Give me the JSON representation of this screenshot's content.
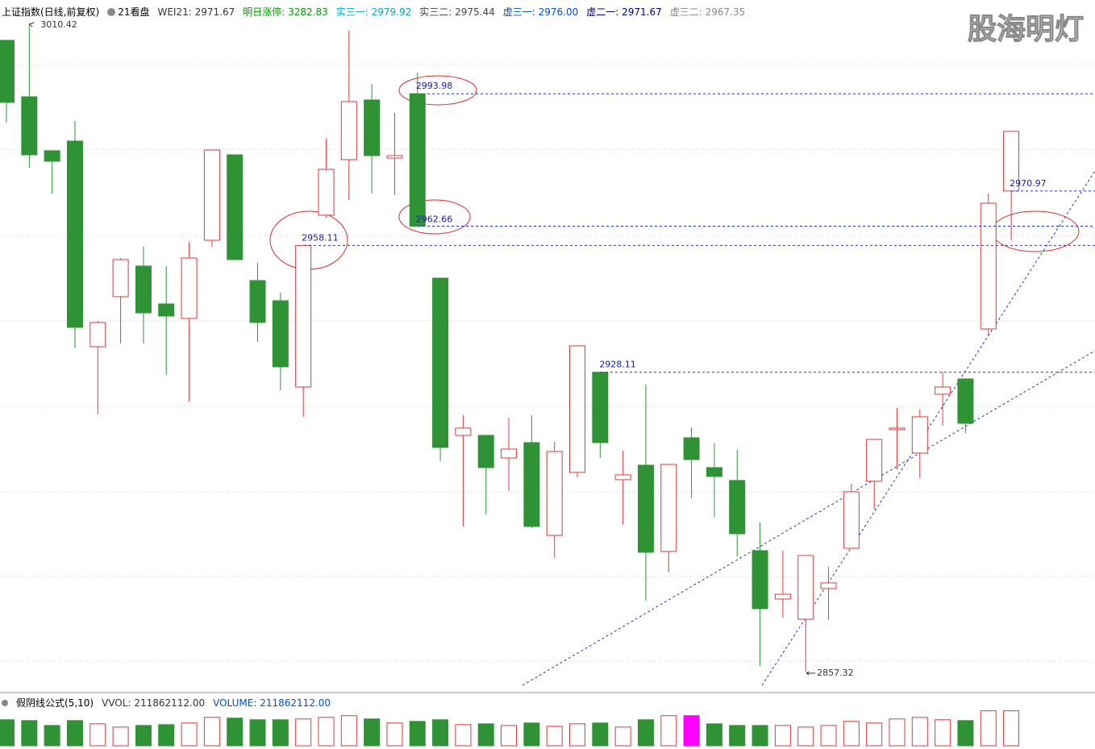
{
  "chart_data": {
    "type": "candlestick",
    "title": "上证指数(日线,前复权)",
    "subtitle": "21看盘",
    "indicators": [
      {
        "name": "WEI21:",
        "value": 2971.67,
        "color": "#333333"
      },
      {
        "name": "明日涨停:",
        "value": 3282.83,
        "color": "#009900"
      },
      {
        "name": "实三一:",
        "value": 2979.92,
        "color": "#00a8c8"
      },
      {
        "name": "实三二:",
        "value": 2975.44,
        "color": "#444444"
      },
      {
        "name": "虚三一:",
        "value": 2976,
        "value_label": "2976.00",
        "color": "#0050c8"
      },
      {
        "name": "虚二一:",
        "value": 2971.67,
        "color": "#000080"
      },
      {
        "name": "虚三二:",
        "value": 2967.35,
        "color": "#888888"
      }
    ],
    "watermark": "股海明灯",
    "ylim": [
      2853.12,
      3016.14
    ],
    "up_color": "#e0383d",
    "down_color": "#2f9335",
    "open": [
      3006.61,
      2993.26,
      2980.49,
      2982.77,
      2934.16,
      2945.98,
      2953.22,
      2944.26,
      2940.83,
      2959.32,
      2979.53,
      2949.79,
      2945.02,
      2924.62,
      2965.24,
      2978.39,
      2992.5,
      2978.77,
      2993.98,
      2950.36,
      2913.18,
      2913.18,
      2907.85,
      2911.47,
      2889.54,
      2904.42,
      2928.11,
      2902.7,
      2906.13,
      2885.73,
      2912.61,
      2905.56,
      2902.51,
      2885.92,
      2874.48,
      2869.71,
      2876.96,
      2886.49,
      2902.32,
      2914.52,
      2908.99,
      2922.91,
      2926.53,
      2938.35,
      2970.97
    ],
    "high": [
      3006.61,
      3010.42,
      2980.49,
      2987.54,
      2940.26,
      2955.13,
      2957.8,
      2953.22,
      2958.94,
      2980.68,
      2979.53,
      2953.98,
      2946.93,
      2958.11,
      2983.35,
      3008.89,
      2996.31,
      2989.45,
      2998.98,
      2950.36,
      2917.95,
      2913.18,
      2917.38,
      2917.95,
      2911.66,
      2934.35,
      2928.11,
      2909.56,
      2925.2,
      2906.32,
      2915.09,
      2911.28,
      2909.75,
      2892.59,
      2885.92,
      2884.77,
      2882.11,
      2901.74,
      2912.23,
      2919.67,
      2919.29,
      2928.25,
      2926.53,
      2970.38,
      2985.06
    ],
    "low": [
      2987.16,
      2976.48,
      2970.38,
      2933.78,
      2918.14,
      2934.92,
      2934.92,
      2927.48,
      2921.2,
      2957.8,
      2954.75,
      2935.3,
      2923.86,
      2917.57,
      2964.66,
      2968.86,
      2970.38,
      2970,
      2962.66,
      2907.08,
      2891.64,
      2894.5,
      2900.03,
      2891.26,
      2884.2,
      2903.27,
      2907.85,
      2892.02,
      2874.1,
      2880.77,
      2898.31,
      2893.74,
      2884.58,
      2858.65,
      2870.09,
      2857.32,
      2869.52,
      2886.49,
      2895.64,
      2905.18,
      2903.08,
      2915.47,
      2913.76,
      2936.83,
      2959.32
    ],
    "close": [
      2991.93,
      2979.53,
      2978.01,
      2938.73,
      2939.88,
      2954.75,
      2942.16,
      2941.4,
      2955.13,
      2980.68,
      2954.75,
      2939.88,
      2929.39,
      2958.11,
      2976.1,
      2992.12,
      2979.34,
      2979.34,
      2962.66,
      2910.33,
      2914.9,
      2905.56,
      2909.94,
      2891.64,
      2909.37,
      2934.35,
      2911.47,
      2903.84,
      2885.54,
      2906.32,
      2907.46,
      2903.46,
      2889.92,
      2872.19,
      2875.62,
      2884.77,
      2878.29,
      2899.84,
      2912.23,
      2914.9,
      2917.57,
      2924.62,
      2916.04,
      2968.1,
      2985.06
    ],
    "volume_title": "假阴线公式(5,10)",
    "volume_indicators": [
      {
        "name": "VVOL:",
        "value": 211862112,
        "value_label": "211862112.00",
        "color": "#333333"
      },
      {
        "name": "VOLUME:",
        "value": 211862112,
        "value_label": "211862112.00",
        "color": "#0050c8"
      }
    ],
    "volume_ylim": [
      0,
      220000000
    ],
    "volume": [
      157660000,
      152740000,
      123180000,
      152740000,
      133030000,
      113320000,
      123180000,
      128100000,
      137960000,
      172450000,
      167520000,
      157660000,
      157660000,
      162590000,
      172450000,
      182300000,
      162590000,
      137960000,
      147810000,
      157660000,
      128100000,
      133030000,
      123180000,
      137960000,
      118250000,
      133030000,
      137960000,
      113320000,
      157660000,
      182300000,
      182300000,
      133030000,
      123180000,
      123180000,
      123180000,
      113320000,
      123180000,
      147810000,
      137960000,
      162590000,
      172450000,
      157660000,
      152740000,
      211860000,
      211862112
    ],
    "volume_colors": [
      "#2f9335",
      "#2f9335",
      "#2f9335",
      "#2f9335",
      "#e0383d",
      "#e0383d",
      "#2f9335",
      "#2f9335",
      "#e0383d",
      "#e0383d",
      "#2f9335",
      "#2f9335",
      "#2f9335",
      "#e0383d",
      "#e0383d",
      "#e0383d",
      "#2f9335",
      "#e0383d",
      "#2f9335",
      "#2f9335",
      "#e0383d",
      "#2f9335",
      "#e0383d",
      "#2f9335",
      "#e0383d",
      "#e0383d",
      "#2f9335",
      "#e0383d",
      "#2f9335",
      "#e0383d",
      "#ff00ff",
      "#2f9335",
      "#2f9335",
      "#2f9335",
      "#e0383d",
      "#e0383d",
      "#e0383d",
      "#e0383d",
      "#e0383d",
      "#e0383d",
      "#e0383d",
      "#e0383d",
      "#2f9335",
      "#e0383d",
      "#e0383d"
    ]
  }
}
